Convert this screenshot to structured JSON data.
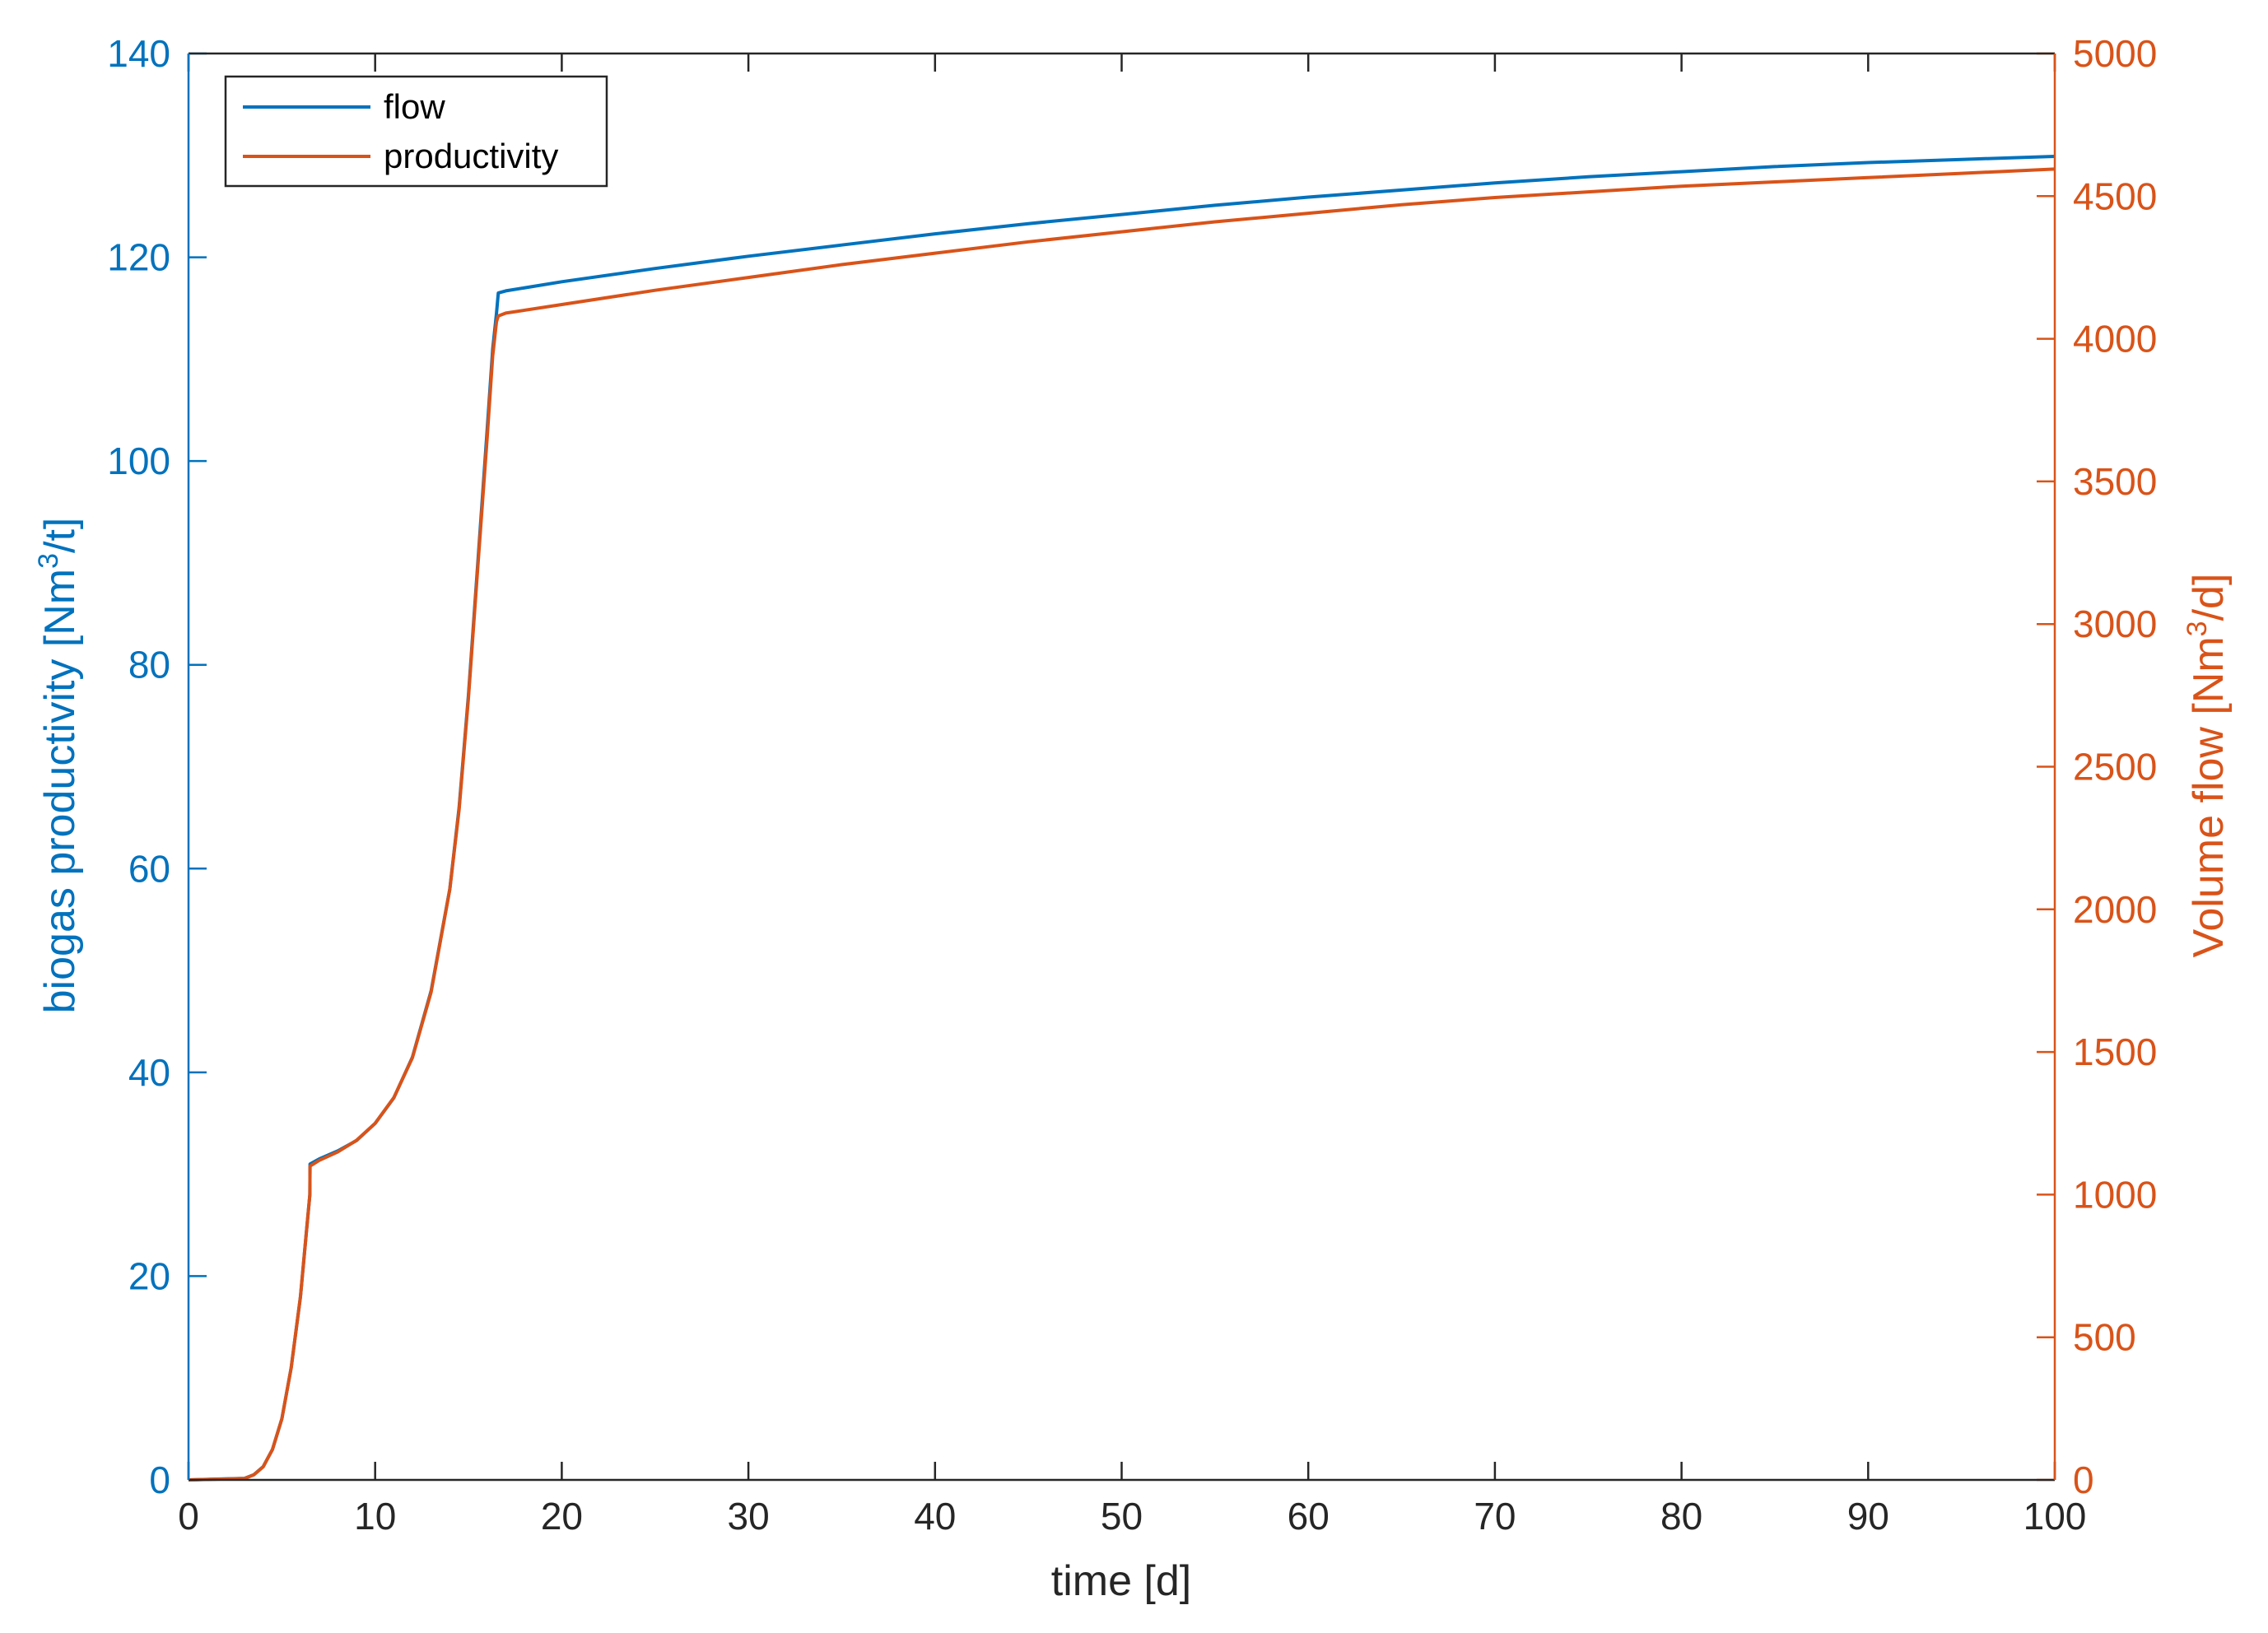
{
  "chart_data": {
    "type": "line",
    "title": "",
    "xlabel": "time [d]",
    "ylabel_left": "biogas productivity [Nm3/t]",
    "ylabel_right": "Volume flow [Nm3/d]",
    "xlim": [
      0,
      100
    ],
    "ylim_left": [
      0,
      140
    ],
    "ylim_right": [
      0,
      5000
    ],
    "x_ticks": [
      0,
      10,
      20,
      30,
      40,
      50,
      60,
      70,
      80,
      90,
      100
    ],
    "y_left_ticks": [
      0,
      20,
      40,
      60,
      80,
      100,
      120,
      140
    ],
    "y_right_ticks": [
      0,
      500,
      1000,
      1500,
      2000,
      2500,
      3000,
      3500,
      4000,
      4500,
      5000
    ],
    "grid": false,
    "legend_position": "top-left",
    "colors": {
      "left_axis": "#0072BD",
      "right_axis": "#D95319",
      "box": "#262626"
    },
    "series": [
      {
        "name": "flow",
        "axis": "left",
        "color": "#0072BD",
        "x": [
          0,
          3,
          3.5,
          4,
          4.5,
          5,
          5.5,
          6,
          6.3,
          6.5,
          6.51,
          7,
          8,
          9,
          10,
          11,
          12,
          13,
          14,
          14.5,
          15,
          15.5,
          16,
          16.3,
          16.5,
          16.6,
          17,
          20,
          25,
          30,
          35,
          40,
          45,
          50,
          55,
          60,
          65,
          70,
          75,
          80,
          85,
          90,
          95,
          100
        ],
        "y": [
          0,
          0.15,
          0.5,
          1.3,
          3,
          6,
          11,
          18,
          24,
          28,
          31,
          31.5,
          32.3,
          33.3,
          35,
          37.5,
          41.5,
          48,
          58,
          66,
          77,
          90,
          103,
          111,
          114.5,
          116.5,
          116.7,
          117.6,
          118.9,
          120.1,
          121.2,
          122.3,
          123.3,
          124.2,
          125.1,
          125.9,
          126.6,
          127.3,
          127.9,
          128.4,
          128.9,
          129.3,
          129.6,
          129.9
        ]
      },
      {
        "name": "productivity",
        "axis": "right",
        "color": "#D95319",
        "x": [
          0,
          3,
          3.5,
          4,
          4.5,
          5,
          5.5,
          6,
          6.3,
          6.5,
          6.51,
          7,
          8,
          9,
          10,
          11,
          12,
          13,
          14,
          14.5,
          15,
          15.5,
          16,
          16.3,
          16.5,
          16.6,
          17,
          20,
          25,
          30,
          35,
          40,
          45,
          50,
          55,
          60,
          65,
          70,
          75,
          80,
          85,
          90,
          95,
          100
        ],
        "y": [
          0,
          5,
          18,
          46,
          107,
          214,
          393,
          643,
          857,
          1000,
          1100,
          1120,
          1150,
          1190,
          1250,
          1340,
          1480,
          1710,
          2070,
          2350,
          2740,
          3200,
          3650,
          3940,
          4060,
          4080,
          4090,
          4120,
          4170,
          4215,
          4260,
          4300,
          4340,
          4375,
          4410,
          4440,
          4470,
          4495,
          4515,
          4535,
          4550,
          4565,
          4580,
          4595
        ]
      }
    ]
  }
}
